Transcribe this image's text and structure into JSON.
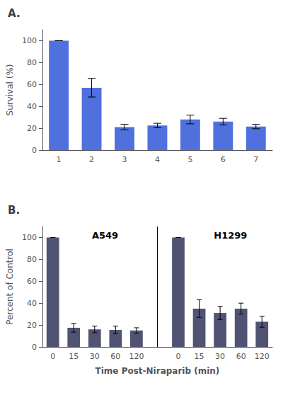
{
  "chart_data": [
    {
      "type": "bar",
      "title": "A.",
      "categories": [
        "1",
        "2",
        "3",
        "4",
        "5",
        "6",
        "7"
      ],
      "values": [
        100,
        57,
        21,
        22.5,
        28,
        26,
        21.5
      ],
      "errors": [
        0,
        8.5,
        2.5,
        2,
        4,
        3,
        2
      ],
      "ylabel": "Survival (%)",
      "ylim": [
        0,
        110
      ],
      "yticks": [
        0,
        20,
        40,
        60,
        80,
        100
      ],
      "grid": false
    },
    {
      "type": "bar",
      "title": "B.",
      "categories": [
        "0",
        "15",
        "30",
        "60",
        "120"
      ],
      "series": [
        {
          "name": "A549",
          "values": [
            100,
            17.5,
            16,
            15.5,
            15
          ],
          "errors": [
            0,
            4,
            3,
            3.5,
            2.5
          ]
        },
        {
          "name": "H1299",
          "values": [
            100,
            35,
            31,
            35,
            23
          ],
          "errors": [
            0,
            8,
            6,
            5,
            5
          ]
        }
      ],
      "xlabel": "Time Post-Niraparib (min)",
      "ylabel": "Percent of Control",
      "ylim": [
        0,
        110
      ],
      "yticks": [
        0,
        20,
        40,
        60,
        80,
        100
      ],
      "grid": false
    }
  ]
}
